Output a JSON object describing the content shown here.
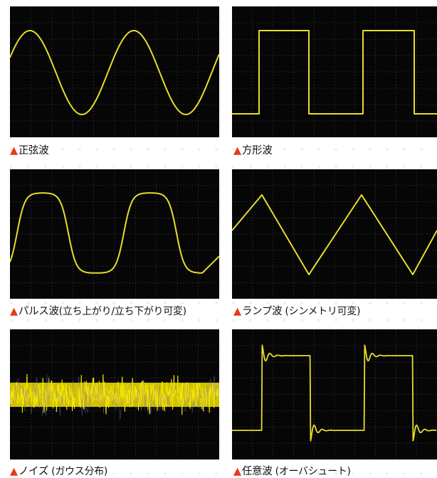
{
  "panels": [
    {
      "id": "sine",
      "caption_main": "正弦波",
      "caption_sub": ""
    },
    {
      "id": "square",
      "caption_main": "方形波",
      "caption_sub": ""
    },
    {
      "id": "pulse",
      "caption_main": "パルス波",
      "caption_sub": "(立ち上がり/立ち下がり可変)"
    },
    {
      "id": "ramp",
      "caption_main": "ランプ波",
      "caption_sub": " (シンメトリ可変)"
    },
    {
      "id": "noise",
      "caption_main": "ノイズ",
      "caption_sub": " (ガウス分布)"
    },
    {
      "id": "arbitrary",
      "caption_main": "任意波",
      "caption_sub": " (オーバシュート)"
    }
  ],
  "marker_symbol": "▲",
  "colors": {
    "trace": "#e8dc2c",
    "noise": "#f5e400",
    "screen": "#060606",
    "grid": "#8a8a8a",
    "marker": "#e53a1b"
  }
}
